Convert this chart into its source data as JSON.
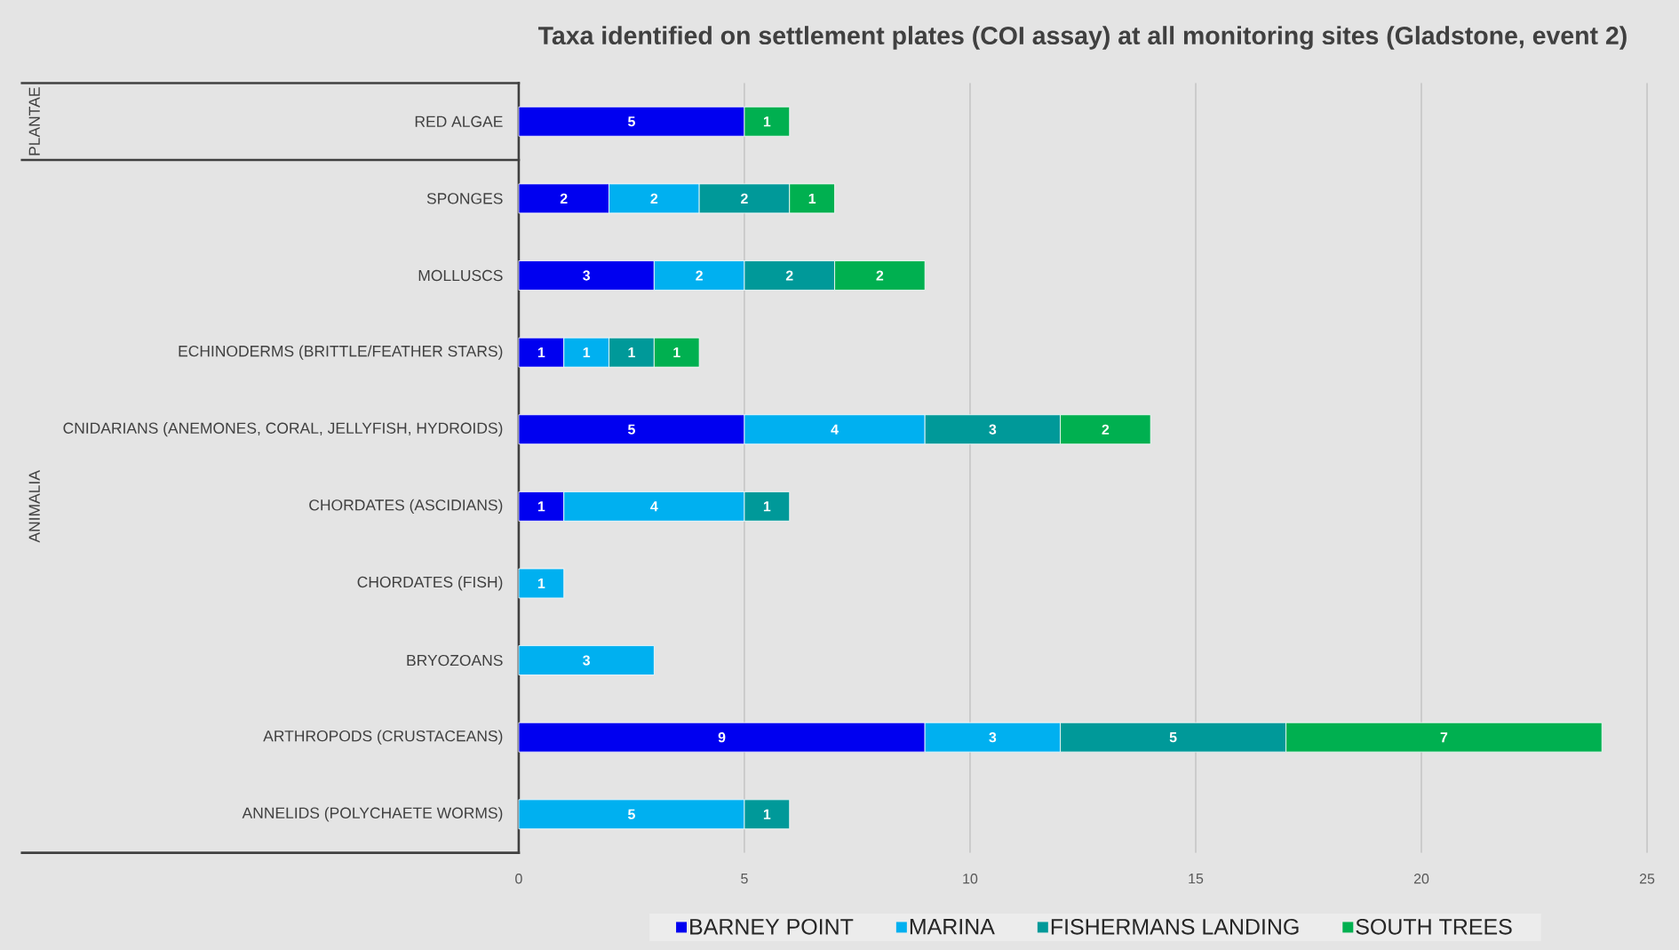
{
  "chart_data": {
    "type": "bar",
    "orientation": "horizontal",
    "stacked": true,
    "title": "Taxa identified on settlement plates (COI assay) at all monitoring sites (Gladstone, event 2)",
    "categories": [
      "RED ALGAE",
      "SPONGES",
      "MOLLUSCS",
      "ECHINODERMS (BRITTLE/FEATHER STARS)",
      "CNIDARIANS (ANEMONES, CORAL, JELLYFISH, HYDROIDS)",
      "CHORDATES (ASCIDIANS)",
      "CHORDATES (FISH)",
      "BRYOZOANS",
      "ARTHROPODS (CRUSTACEANS)",
      "ANNELIDS (POLYCHAETE WORMS)"
    ],
    "series": [
      {
        "name": "BARNEY POINT",
        "color": "#0000f0",
        "values": [
          5,
          2,
          3,
          1,
          5,
          1,
          null,
          null,
          9,
          null
        ]
      },
      {
        "name": "MARINA",
        "color": "#00b0f0",
        "values": [
          null,
          2,
          2,
          1,
          4,
          4,
          1,
          3,
          3,
          5
        ]
      },
      {
        "name": "FISHERMANS LANDING",
        "color": "#009999",
        "values": [
          null,
          2,
          2,
          1,
          3,
          1,
          null,
          null,
          5,
          1
        ]
      },
      {
        "name": "SOUTH TREES",
        "color": "#00b050",
        "values": [
          1,
          1,
          2,
          1,
          2,
          null,
          null,
          null,
          7,
          null
        ]
      }
    ],
    "xlim": [
      0,
      25
    ],
    "xticks": [
      0,
      5,
      10,
      15,
      20,
      25
    ],
    "grid": "x",
    "legend": "bottom",
    "data_labels": true,
    "annotations": [
      "PLANTAE",
      "ANIMALIA"
    ]
  }
}
